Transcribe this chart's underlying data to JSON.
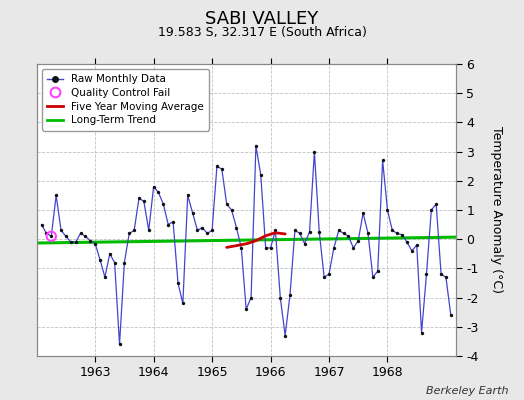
{
  "title": "SABI VALLEY",
  "subtitle": "19.583 S, 32.317 E (South Africa)",
  "ylabel": "Temperature Anomaly (°C)",
  "credit": "Berkeley Earth",
  "fig_facecolor": "#e8e8e8",
  "plot_facecolor": "#ffffff",
  "ylim": [
    -4,
    6
  ],
  "yticks": [
    -4,
    -3,
    -2,
    -1,
    0,
    1,
    2,
    3,
    4,
    5,
    6
  ],
  "xlim": [
    1962.0,
    1969.17
  ],
  "xtick_vals": [
    1963,
    1964,
    1965,
    1966,
    1967,
    1968
  ],
  "raw_x": [
    1962.083,
    1962.167,
    1962.25,
    1962.333,
    1962.417,
    1962.5,
    1962.583,
    1962.667,
    1962.75,
    1962.833,
    1962.917,
    1963.0,
    1963.083,
    1963.167,
    1963.25,
    1963.333,
    1963.417,
    1963.5,
    1963.583,
    1963.667,
    1963.75,
    1963.833,
    1963.917,
    1964.0,
    1964.083,
    1964.167,
    1964.25,
    1964.333,
    1964.417,
    1964.5,
    1964.583,
    1964.667,
    1964.75,
    1964.833,
    1964.917,
    1965.0,
    1965.083,
    1965.167,
    1965.25,
    1965.333,
    1965.417,
    1965.5,
    1965.583,
    1965.667,
    1965.75,
    1965.833,
    1965.917,
    1966.0,
    1966.083,
    1966.167,
    1966.25,
    1966.333,
    1966.417,
    1966.5,
    1966.583,
    1966.667,
    1966.75,
    1966.833,
    1966.917,
    1967.0,
    1967.083,
    1967.167,
    1967.25,
    1967.333,
    1967.417,
    1967.5,
    1967.583,
    1967.667,
    1967.75,
    1967.833,
    1967.917,
    1968.0,
    1968.083,
    1968.167,
    1968.25,
    1968.333,
    1968.417,
    1968.5,
    1968.583,
    1968.667,
    1968.75,
    1968.833,
    1968.917,
    1969.0,
    1969.083
  ],
  "raw_y": [
    0.5,
    0.2,
    0.1,
    1.5,
    0.3,
    0.1,
    -0.1,
    -0.1,
    0.2,
    0.1,
    -0.05,
    -0.15,
    -0.7,
    -1.3,
    -0.5,
    -0.8,
    -3.6,
    -0.8,
    0.2,
    0.3,
    1.4,
    1.3,
    0.3,
    1.8,
    1.6,
    1.2,
    0.5,
    0.6,
    -1.5,
    -2.2,
    1.5,
    0.9,
    0.3,
    0.4,
    0.2,
    0.3,
    2.5,
    2.4,
    1.2,
    1.0,
    0.4,
    -0.3,
    -2.4,
    -2.0,
    3.2,
    2.2,
    -0.3,
    -0.3,
    0.3,
    -2.0,
    -3.3,
    -1.9,
    0.3,
    0.2,
    -0.15,
    0.25,
    3.0,
    0.25,
    -1.3,
    -1.2,
    -0.3,
    0.3,
    0.2,
    0.1,
    -0.3,
    -0.05,
    0.9,
    0.2,
    -1.3,
    -1.1,
    2.7,
    1.0,
    0.3,
    0.2,
    0.15,
    -0.1,
    -0.4,
    -0.2,
    -3.2,
    -1.2,
    1.0,
    1.2,
    -1.2,
    -1.3,
    -2.6
  ],
  "qc_fail_x": [
    1962.25
  ],
  "qc_fail_y": [
    0.1
  ],
  "moving_avg_x": [
    1965.25,
    1965.42,
    1965.6,
    1965.75,
    1965.92,
    1966.08,
    1966.25
  ],
  "moving_avg_y": [
    -0.28,
    -0.22,
    -0.15,
    -0.05,
    0.12,
    0.22,
    0.18
  ],
  "trend_x": [
    1962.0,
    1969.17
  ],
  "trend_y": [
    -0.13,
    0.07
  ],
  "line_color": "#4444cc",
  "marker_color": "#111111",
  "qc_color": "#ff44ff",
  "moving_avg_color": "#cc0000",
  "trend_color": "#00bb00",
  "grid_color": "#bbbbbb",
  "title_fontsize": 13,
  "subtitle_fontsize": 9,
  "tick_fontsize": 9,
  "ylabel_fontsize": 9
}
